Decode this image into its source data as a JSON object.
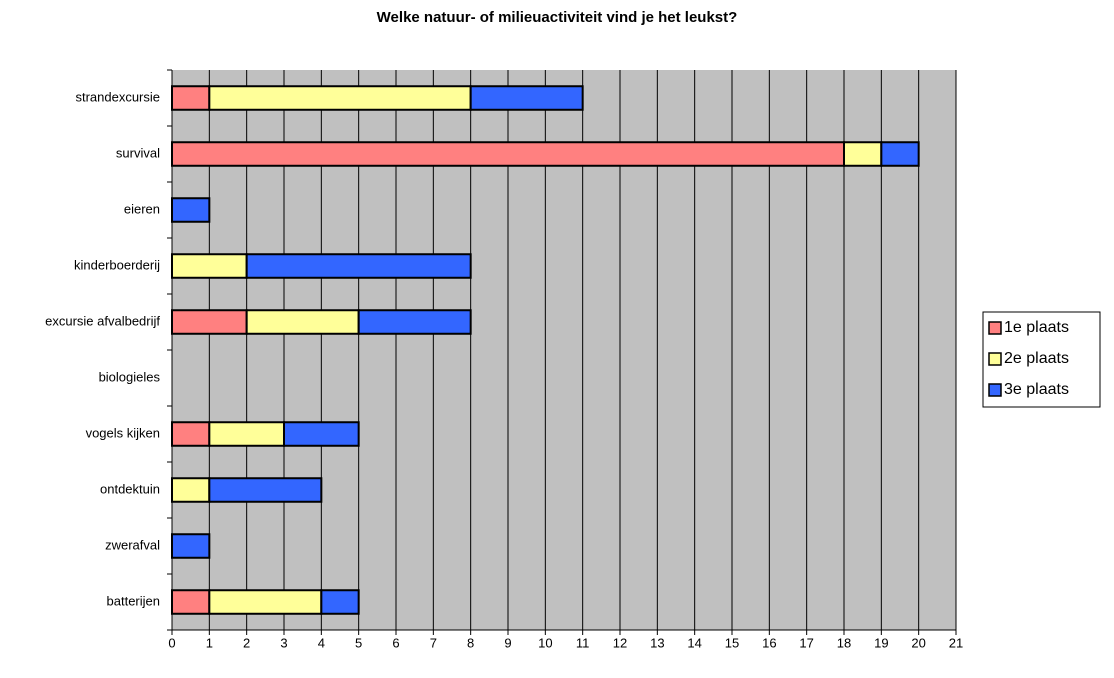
{
  "chart_data": {
    "type": "bar",
    "orientation": "horizontal",
    "stacked": true,
    "title": "Welke natuur- of milieuactiviteit vind je het leukst?",
    "categories": [
      "strandexcursie",
      "survival",
      "eieren",
      "kinderboerderij",
      "excursie afvalbedrijf",
      "biologieles",
      "vogels kijken",
      "ontdektuin",
      "zwerafval",
      "batterijen"
    ],
    "series": [
      {
        "name": "1e plaats",
        "color": "#ff8080",
        "values": [
          1,
          18,
          0,
          0,
          2,
          0,
          1,
          0,
          0,
          1
        ]
      },
      {
        "name": "2e plaats",
        "color": "#ffff99",
        "values": [
          7,
          1,
          0,
          2,
          3,
          0,
          2,
          1,
          0,
          3
        ]
      },
      {
        "name": "3e plaats",
        "color": "#3366ff",
        "values": [
          3,
          1,
          1,
          6,
          3,
          0,
          2,
          3,
          1,
          1
        ]
      }
    ],
    "xlim": [
      0,
      21
    ],
    "xticks": [
      0,
      1,
      2,
      3,
      4,
      5,
      6,
      7,
      8,
      9,
      10,
      11,
      12,
      13,
      14,
      15,
      16,
      17,
      18,
      19,
      20,
      21
    ],
    "grid": true,
    "legend": "right"
  }
}
